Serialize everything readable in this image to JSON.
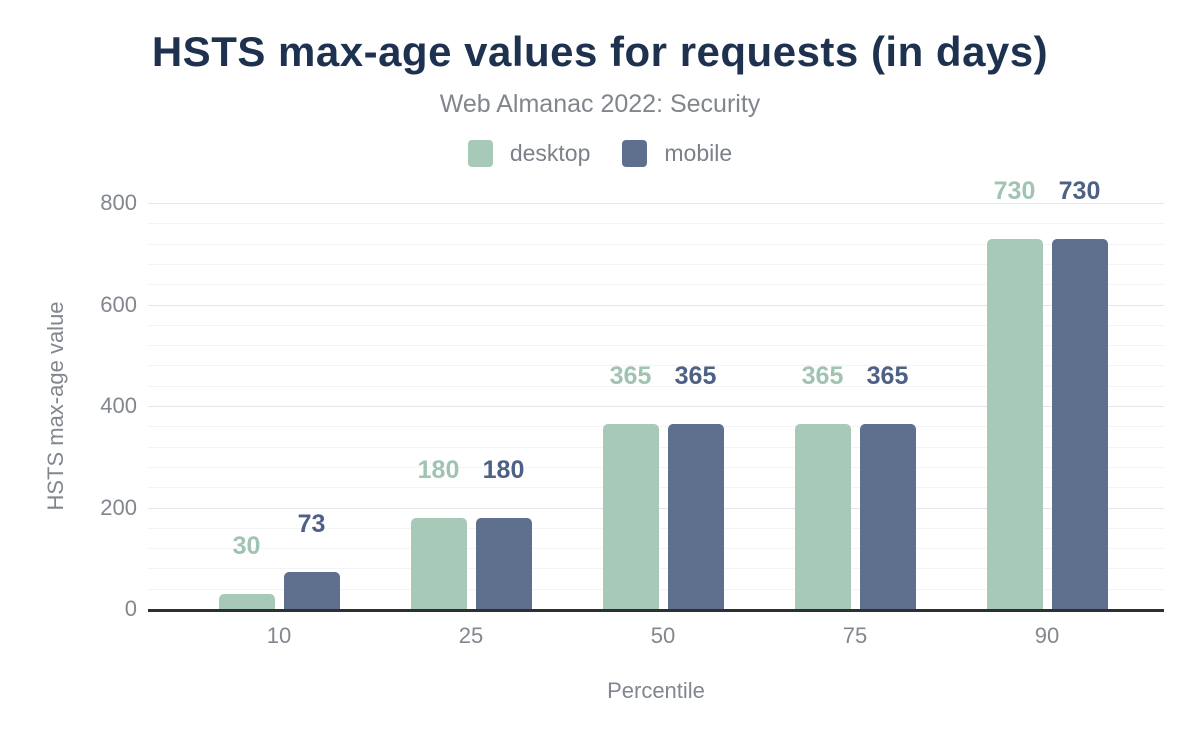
{
  "chart_data": {
    "type": "bar",
    "title": "HSTS max-age values for requests (in days)",
    "subtitle": "Web Almanac 2022: Security",
    "xlabel": "Percentile",
    "ylabel": "HSTS max-age value",
    "categories": [
      "10",
      "25",
      "50",
      "75",
      "90"
    ],
    "series": [
      {
        "name": "desktop",
        "values": [
          30,
          180,
          365,
          365,
          730
        ],
        "color": "#a7c9b8",
        "label_color": "#9fc4b1"
      },
      {
        "name": "mobile",
        "values": [
          73,
          180,
          365,
          365,
          730
        ],
        "color": "#5f708e",
        "label_color": "#4d6186"
      }
    ],
    "value_labels": [
      [
        "30",
        "180",
        "365",
        "365",
        "730"
      ],
      [
        "73",
        "180",
        "365",
        "365",
        "730"
      ]
    ],
    "ylim": [
      0,
      800
    ],
    "yticks": [
      "0",
      "200",
      "400",
      "600",
      "800"
    ],
    "ytick_values": [
      0,
      200,
      400,
      600,
      800
    ],
    "minor_grid_step": 40,
    "grid": "horizontal-only",
    "legend_position": "top-center"
  },
  "ui_colors": {
    "title": "#1e3250",
    "subtitle": "#81868e",
    "axis_text": "#82878f",
    "legend_text": "#7b818b",
    "baseline": "#2e2f31",
    "grid_major": "#e4e6e9",
    "grid_minor": "#f3f4f6",
    "background": "#ffffff"
  }
}
